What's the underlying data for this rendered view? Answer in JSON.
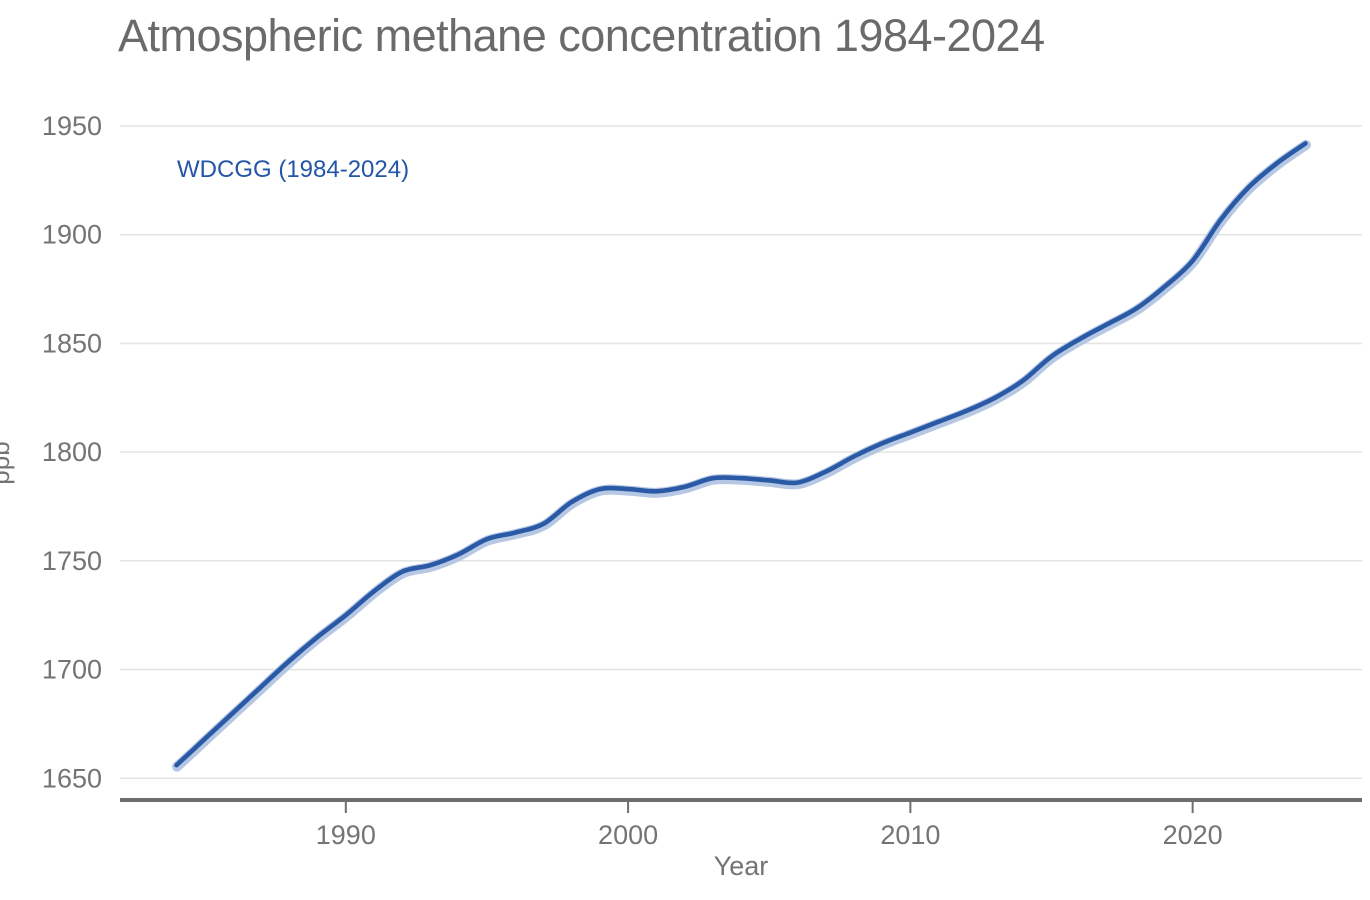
{
  "title": "Atmospheric methane concentration 1984-2024",
  "series_label": "WDCGG (1984-2024)",
  "axes": {
    "x_label": "Year",
    "y_label": "ppb"
  },
  "colors": {
    "line": "#2a5aa5",
    "halo": "#b6c7e4",
    "series_label_blue": "#2356a7",
    "title_gray": "#6a6a6a",
    "tick_gray": "#747474",
    "grid": "#e4e4e4",
    "axis": "#6e6e6e"
  },
  "chart_data": {
    "type": "line",
    "title": "Atmospheric methane concentration 1984-2024",
    "xlabel": "Year",
    "ylabel": "ppb",
    "legend_entries": [
      "WDCGG (1984-2024)"
    ],
    "legend_position": "top-left-inside",
    "grid": "horizontal-only",
    "x_ticks": [
      1990,
      2000,
      2010,
      2020
    ],
    "y_ticks": [
      1650,
      1700,
      1750,
      1800,
      1850,
      1900,
      1950
    ],
    "xlim": [
      1982,
      2026
    ],
    "ylim": [
      1640,
      1950
    ],
    "x": [
      1984,
      1985,
      1986,
      1987,
      1988,
      1989,
      1990,
      1991,
      1992,
      1993,
      1994,
      1995,
      1996,
      1997,
      1998,
      1999,
      2000,
      2001,
      2002,
      2003,
      2004,
      2005,
      2006,
      2007,
      2008,
      2009,
      2010,
      2011,
      2012,
      2013,
      2014,
      2015,
      2016,
      2017,
      2018,
      2019,
      2020,
      2021,
      2022,
      2023,
      2024
    ],
    "series": [
      {
        "name": "WDCGG (1984-2024)",
        "values": [
          1656,
          1668,
          1680,
          1692,
          1704,
          1715,
          1725,
          1736,
          1745,
          1748,
          1753,
          1760,
          1763,
          1767,
          1777,
          1783,
          1783,
          1782,
          1784,
          1788,
          1788,
          1787,
          1786,
          1791,
          1798,
          1804,
          1809,
          1814,
          1819,
          1825,
          1833,
          1844,
          1852,
          1859,
          1866,
          1876,
          1888,
          1907,
          1922,
          1933,
          1942
        ]
      }
    ]
  }
}
